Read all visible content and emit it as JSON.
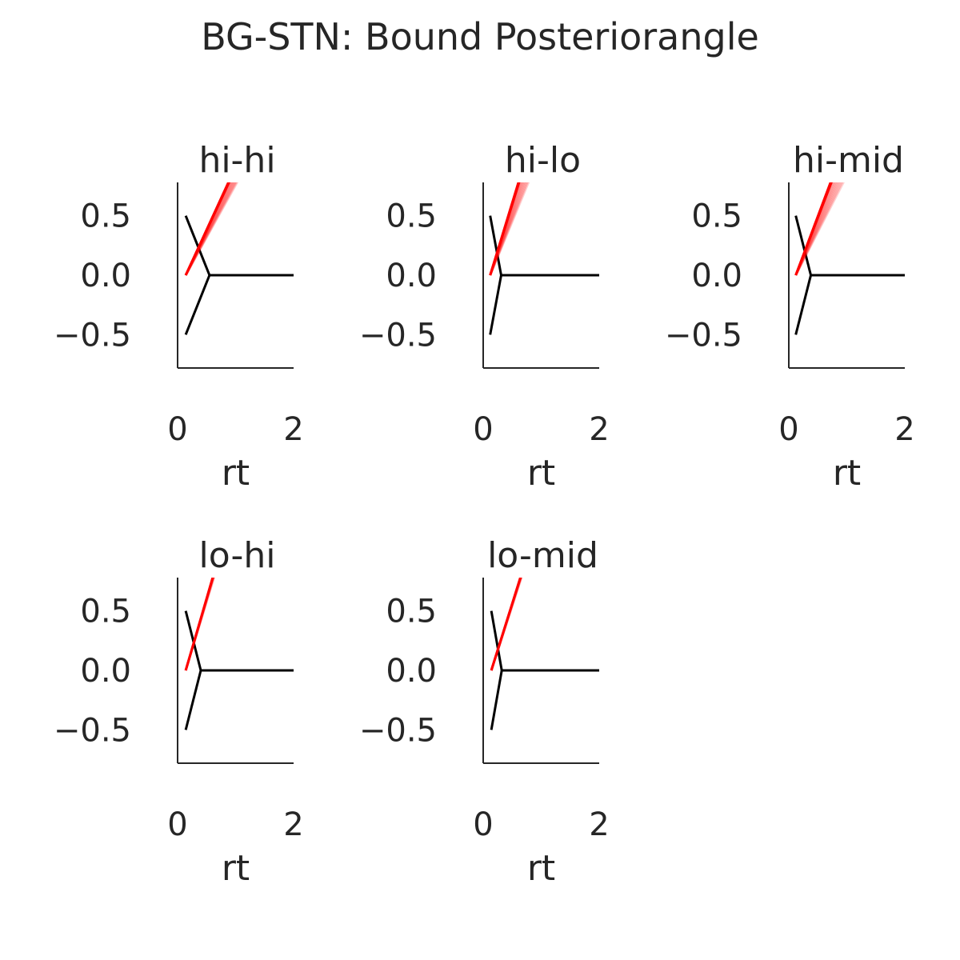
{
  "figure": {
    "title": "BG-STN: Bound Posteriorangle"
  },
  "colors": {
    "posterior": "#ff0000",
    "bound": "#000000",
    "axis": "#262626"
  },
  "chart_data": [
    {
      "type": "line",
      "title": "hi-hi",
      "xlabel": "rt",
      "ylabel": "",
      "xlim": [
        0,
        2
      ],
      "ylim": [
        -0.78,
        0.78
      ],
      "xticks": [
        0,
        2
      ],
      "xtick_labels": [
        "0",
        "2"
      ],
      "yticks": [
        0.5,
        0.0,
        -0.5
      ],
      "ytick_labels": [
        "0.5",
        "0.0",
        "−0.5"
      ],
      "bound": {
        "t0": 0.14,
        "a": 0.5,
        "t_vertex": 0.55,
        "t_end": 2.0
      },
      "posterior_slope": {
        "min": 0.88,
        "max": 1.06,
        "n_samples": 12
      }
    },
    {
      "type": "line",
      "title": "hi-lo",
      "xlabel": "rt",
      "ylabel": "",
      "xlim": [
        0,
        2
      ],
      "ylim": [
        -0.78,
        0.78
      ],
      "xticks": [
        0,
        2
      ],
      "xtick_labels": [
        "0",
        "2"
      ],
      "yticks": [
        0.5,
        0.0,
        -0.5
      ],
      "ytick_labels": [
        "0.5",
        "0.0",
        "−0.5"
      ],
      "bound": {
        "t0": 0.12,
        "a": 0.5,
        "t_vertex": 0.31,
        "t_end": 2.0
      },
      "posterior_slope": {
        "min": 1.18,
        "max": 1.6,
        "n_samples": 12
      }
    },
    {
      "type": "line",
      "title": "hi-mid",
      "xlabel": "rt",
      "ylabel": "",
      "xlim": [
        0,
        2
      ],
      "ylim": [
        -0.78,
        0.78
      ],
      "xticks": [
        0,
        2
      ],
      "xtick_labels": [
        "0",
        "2"
      ],
      "yticks": [
        0.5,
        0.0,
        -0.5
      ],
      "ytick_labels": [
        "0.5",
        "0.0",
        "−0.5"
      ],
      "bound": {
        "t0": 0.12,
        "a": 0.5,
        "t_vertex": 0.38,
        "t_end": 2.0
      },
      "posterior_slope": {
        "min": 0.95,
        "max": 1.3,
        "n_samples": 12
      }
    },
    {
      "type": "line",
      "title": "lo-hi",
      "xlabel": "rt",
      "ylabel": "",
      "xlim": [
        0,
        2
      ],
      "ylim": [
        -0.78,
        0.78
      ],
      "xticks": [
        0,
        2
      ],
      "xtick_labels": [
        "0",
        "2"
      ],
      "yticks": [
        0.5,
        0.0,
        -0.5
      ],
      "ytick_labels": [
        "0.5",
        "0.0",
        "−0.5"
      ],
      "bound": {
        "t0": 0.14,
        "a": 0.5,
        "t_vertex": 0.4,
        "t_end": 2.0
      },
      "posterior_slope": {
        "min": 1.6,
        "max": 1.68,
        "n_samples": 6
      }
    },
    {
      "type": "line",
      "title": "lo-mid",
      "xlabel": "rt",
      "ylabel": "",
      "xlim": [
        0,
        2
      ],
      "ylim": [
        -0.78,
        0.78
      ],
      "xticks": [
        0,
        2
      ],
      "xtick_labels": [
        "0",
        "2"
      ],
      "yticks": [
        0.5,
        0.0,
        -0.5
      ],
      "ytick_labels": [
        "0.5",
        "0.0",
        "−0.5"
      ],
      "bound": {
        "t0": 0.14,
        "a": 0.5,
        "t_vertex": 0.32,
        "t_end": 2.0
      },
      "posterior_slope": {
        "min": 1.5,
        "max": 1.56,
        "n_samples": 6
      }
    }
  ]
}
